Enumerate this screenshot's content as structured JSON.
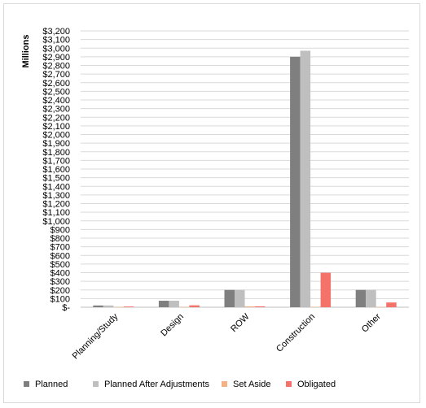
{
  "chart_data": {
    "type": "bar",
    "title": "",
    "xlabel": "",
    "ylabel": "Millions",
    "ylim": [
      0,
      3200
    ],
    "ytick_step": 100,
    "ytick_labels": [
      "$-",
      "$100",
      "$200",
      "$300",
      "$400",
      "$500",
      "$600",
      "$700",
      "$800",
      "$900",
      "$1,000",
      "$1,100",
      "$1,200",
      "$1,300",
      "$1,400",
      "$1,500",
      "$1,600",
      "$1,700",
      "$1,800",
      "$1,900",
      "$2,000",
      "$2,100",
      "$2,200",
      "$2,300",
      "$2,400",
      "$2,500",
      "$2,600",
      "$2,700",
      "$2,800",
      "$2,900",
      "$3,000",
      "$3,100",
      "$3,200"
    ],
    "grid": true,
    "legend_position": "bottom",
    "categories": [
      "Planning/Study",
      "Design",
      "ROW",
      "Construction",
      "Other"
    ],
    "series": [
      {
        "name": "Planned",
        "color": "#7f7f7f",
        "values": [
          20,
          75,
          200,
          2900,
          200
        ]
      },
      {
        "name": "Planned After Adjustments",
        "color": "#bfbfbf",
        "values": [
          20,
          75,
          200,
          2970,
          200
        ]
      },
      {
        "name": "Set Aside",
        "color": "#f4b183",
        "values": [
          2,
          3,
          10,
          5,
          3
        ]
      },
      {
        "name": "Obligated",
        "color": "#f4726a",
        "values": [
          8,
          22,
          10,
          400,
          55
        ]
      }
    ]
  }
}
